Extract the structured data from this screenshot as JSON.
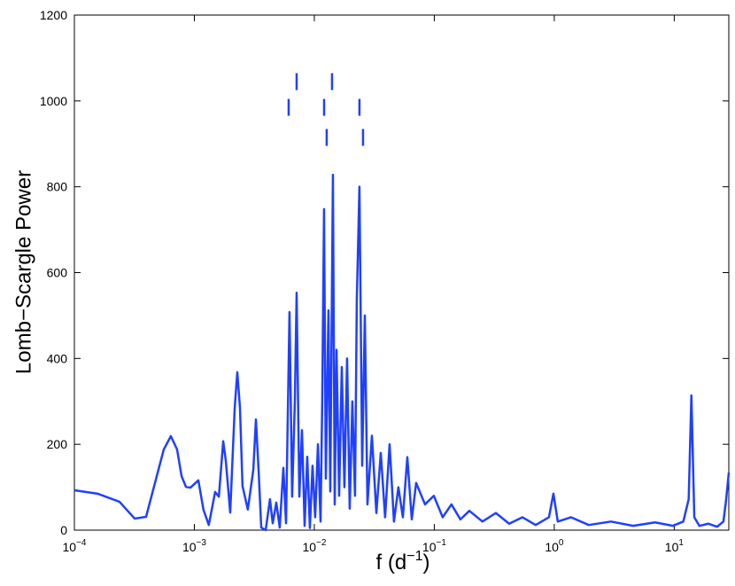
{
  "chart_data": {
    "type": "line",
    "ylabel": "Lomb−Scargle Power",
    "xlabel": {
      "text": "f (d",
      "superscript": "−1",
      "suffix": ")"
    },
    "xscale": "log",
    "color": "#2040ff",
    "xlim": [
      0.0001,
      28.5
    ],
    "ylim": [
      0,
      1200
    ],
    "yticks": [
      0,
      200,
      400,
      600,
      800,
      1000,
      1200
    ],
    "xticks": [
      {
        "value": 0.0001,
        "label": "10",
        "exponent": "−4"
      },
      {
        "value": 0.001,
        "label": "10",
        "exponent": "−3"
      },
      {
        "value": 0.01,
        "label": "10",
        "exponent": "−2"
      },
      {
        "value": 0.1,
        "label": "10",
        "exponent": "−1"
      },
      {
        "value": 1,
        "label": "10",
        "exponent": "0"
      },
      {
        "value": 10,
        "label": "10",
        "exponent": "1"
      }
    ],
    "x": [
      0.0001,
      0.000156,
      0.000238,
      0.000318,
      0.000396,
      0.000556,
      0.000637,
      0.000718,
      0.000782,
      0.000851,
      0.000927,
      0.00108,
      0.00119,
      0.00132,
      0.00149,
      0.0016,
      0.00174,
      0.00183,
      0.00199,
      0.00217,
      0.00228,
      0.0024,
      0.00252,
      0.00279,
      0.0031,
      0.00326,
      0.00343,
      0.00361,
      0.00393,
      0.00427,
      0.0045,
      0.00482,
      0.00515,
      0.00552,
      0.00581,
      0.00621,
      0.00653,
      0.00689,
      0.00712,
      0.0075,
      0.00789,
      0.0083,
      0.00873,
      0.00918,
      0.00966,
      0.01016,
      0.01072,
      0.01127,
      0.01164,
      0.01205,
      0.01247,
      0.01312,
      0.01358,
      0.01429,
      0.01479,
      0.01531,
      0.0161,
      0.01694,
      0.01782,
      0.01875,
      0.01972,
      0.02075,
      0.02183,
      0.0226,
      0.02377,
      0.02506,
      0.02636,
      0.02773,
      0.0302,
      0.0329,
      0.0358,
      0.0389,
      0.0424,
      0.0461,
      0.0502,
      0.0547,
      0.0596,
      0.0649,
      0.0706,
      0.0837,
      0.0991,
      0.1175,
      0.139,
      0.165,
      0.196,
      0.252,
      0.326,
      0.421,
      0.542,
      0.7,
      0.903,
      0.984,
      1.07,
      1.38,
      1.94,
      2.97,
      4.54,
      6.93,
      9.75,
      11.9,
      13.2,
      13.9,
      14.7,
      16.2,
      19.2,
      22.8,
      25.7,
      27,
      28.5
    ],
    "values": [
      93,
      85,
      66,
      27,
      31,
      188,
      219,
      188,
      126,
      101,
      99,
      116,
      48,
      12,
      89,
      78,
      207,
      161,
      41,
      285,
      368,
      285,
      103,
      48,
      140,
      258,
      140,
      6,
      0,
      72,
      16,
      64,
      6,
      145,
      16,
      508,
      78,
      306,
      553,
      78,
      233,
      10,
      171,
      5,
      150,
      30,
      200,
      20,
      300,
      748,
      120,
      512,
      90,
      828,
      60,
      420,
      80,
      380,
      100,
      400,
      50,
      300,
      80,
      537,
      800,
      150,
      500,
      60,
      220,
      40,
      180,
      30,
      200,
      20,
      100,
      30,
      170,
      25,
      110,
      60,
      80,
      30,
      60,
      25,
      45,
      20,
      40,
      15,
      30,
      12,
      30,
      85,
      20,
      30,
      12,
      20,
      10,
      18,
      10,
      20,
      72,
      314,
      30,
      10,
      15,
      8,
      20,
      68,
      134
    ],
    "markers": [
      {
        "x": 0.00611,
        "y": 985
      },
      {
        "x": 0.00712,
        "y": 1045
      },
      {
        "x": 0.01206,
        "y": 985
      },
      {
        "x": 0.01268,
        "y": 915
      },
      {
        "x": 0.01405,
        "y": 1045
      },
      {
        "x": 0.02378,
        "y": 985
      },
      {
        "x": 0.02547,
        "y": 915
      }
    ]
  }
}
